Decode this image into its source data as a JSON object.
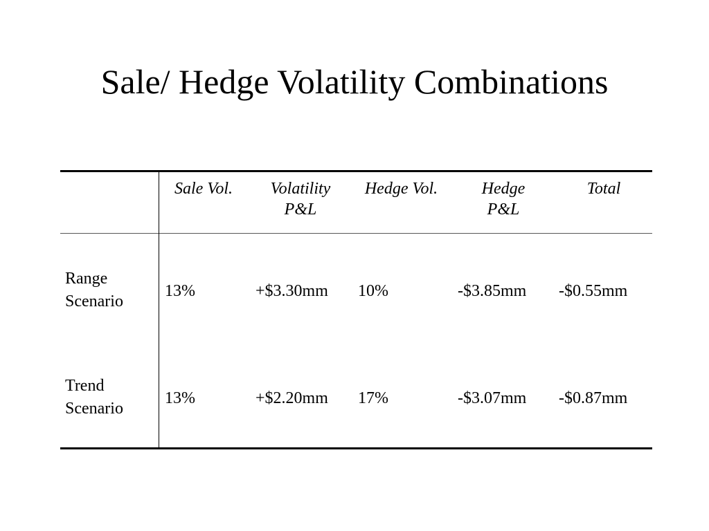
{
  "slide": {
    "title": "Sale/ Hedge Volatility Combinations"
  },
  "table": {
    "headers": {
      "sale_vol": "Sale Vol.",
      "volatility_pnl": "Volatility\nP&L",
      "hedge_vol": "Hedge Vol.",
      "hedge_pnl": "Hedge\nP&L",
      "total": "Total"
    },
    "rows": [
      {
        "label": "Range\nScenario",
        "sale_vol": "13%",
        "volatility_pnl": "+$3.30mm",
        "hedge_vol": "10%",
        "hedge_pnl": "-$3.85mm",
        "total": "-$0.55mm"
      },
      {
        "label": "Trend\nScenario",
        "sale_vol": "13%",
        "volatility_pnl": "+$2.20mm",
        "hedge_vol": "17%",
        "hedge_pnl": "-$3.07mm",
        "total": "-$0.87mm"
      }
    ]
  }
}
